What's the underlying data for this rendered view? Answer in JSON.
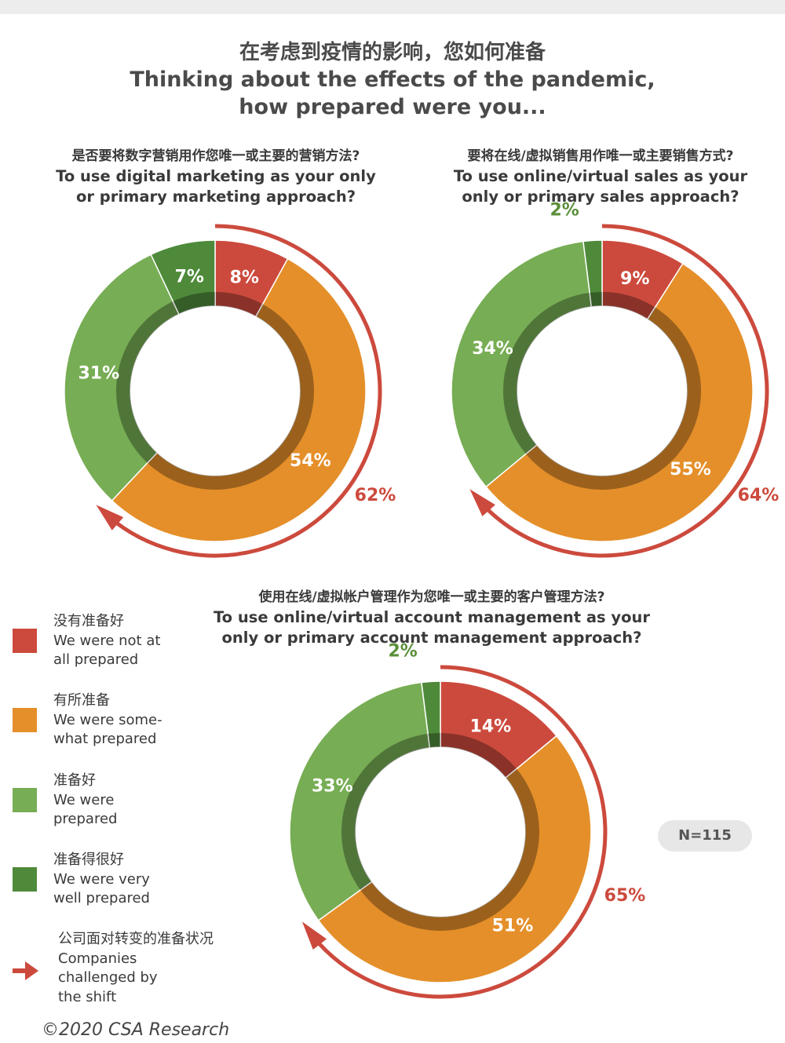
{
  "title": {
    "zh": "在考虑到疫情的影响，您如何准备",
    "en_line1": "Thinking about the effects of the pandemic,",
    "en_line2": "how prepared were you..."
  },
  "colors": {
    "not_prepared": "#cc4a3d",
    "somewhat": "#e58f2a",
    "prepared": "#77ad54",
    "very_well": "#4e8a3a",
    "arrow": "#cc4a3d",
    "outer_label": "#5a8f3a"
  },
  "chart_data": [
    {
      "type": "pie",
      "question_zh": "是否要将数字营销用作您唯一或主要的营销方法?",
      "question_en_line1": "To use digital marketing as your only",
      "question_en_line2": "or primary marketing approach?",
      "categories": [
        "We were not at all prepared",
        "We were somewhat prepared",
        "We were prepared",
        "We were very well prepared"
      ],
      "values": [
        8,
        54,
        31,
        7
      ],
      "labels": [
        "8%",
        "54%",
        "31%",
        "7%"
      ],
      "challenged_total": "62%"
    },
    {
      "type": "pie",
      "question_zh": "要将在线/虚拟销售用作唯一或主要销售方式?",
      "question_en_line1": "To use online/virtual sales as your",
      "question_en_line2": "only or primary sales approach?",
      "categories": [
        "We were not at all prepared",
        "We were somewhat prepared",
        "We were prepared",
        "We were very well prepared"
      ],
      "values": [
        9,
        55,
        34,
        2
      ],
      "labels": [
        "9%",
        "55%",
        "34%",
        "2%"
      ],
      "challenged_total": "64%"
    },
    {
      "type": "pie",
      "question_zh": "使用在线/虚拟帐户管理作为您唯一或主要的客户管理方法?",
      "question_en_line1": "To use online/virtual account management as your",
      "question_en_line2": "only or primary account management approach?",
      "categories": [
        "We were not at all prepared",
        "We were somewhat prepared",
        "We were prepared",
        "We were very well prepared"
      ],
      "values": [
        14,
        51,
        33,
        2
      ],
      "labels": [
        "14%",
        "51%",
        "33%",
        "2%"
      ],
      "challenged_total": "65%"
    }
  ],
  "legend": [
    {
      "zh": "没有准备好",
      "en1": "We were not at",
      "en2": "all prepared",
      "color": "#cc4a3d"
    },
    {
      "zh": "有所准备",
      "en1": "We were some-",
      "en2": "what prepared",
      "color": "#e58f2a"
    },
    {
      "zh": "准备好",
      "en1": "We were",
      "en2": "prepared",
      "color": "#77ad54"
    },
    {
      "zh": "准备得很好",
      "en1": "We were very",
      "en2": "well prepared",
      "color": "#4e8a3a"
    },
    {
      "zh": "公司面对转变的准备状况",
      "en1": "Companies",
      "en2": "challenged by",
      "en3": "the shift",
      "icon": "red-arrow-icon"
    }
  ],
  "sample_size": "N=115",
  "copyright": "©2020 CSA Research"
}
